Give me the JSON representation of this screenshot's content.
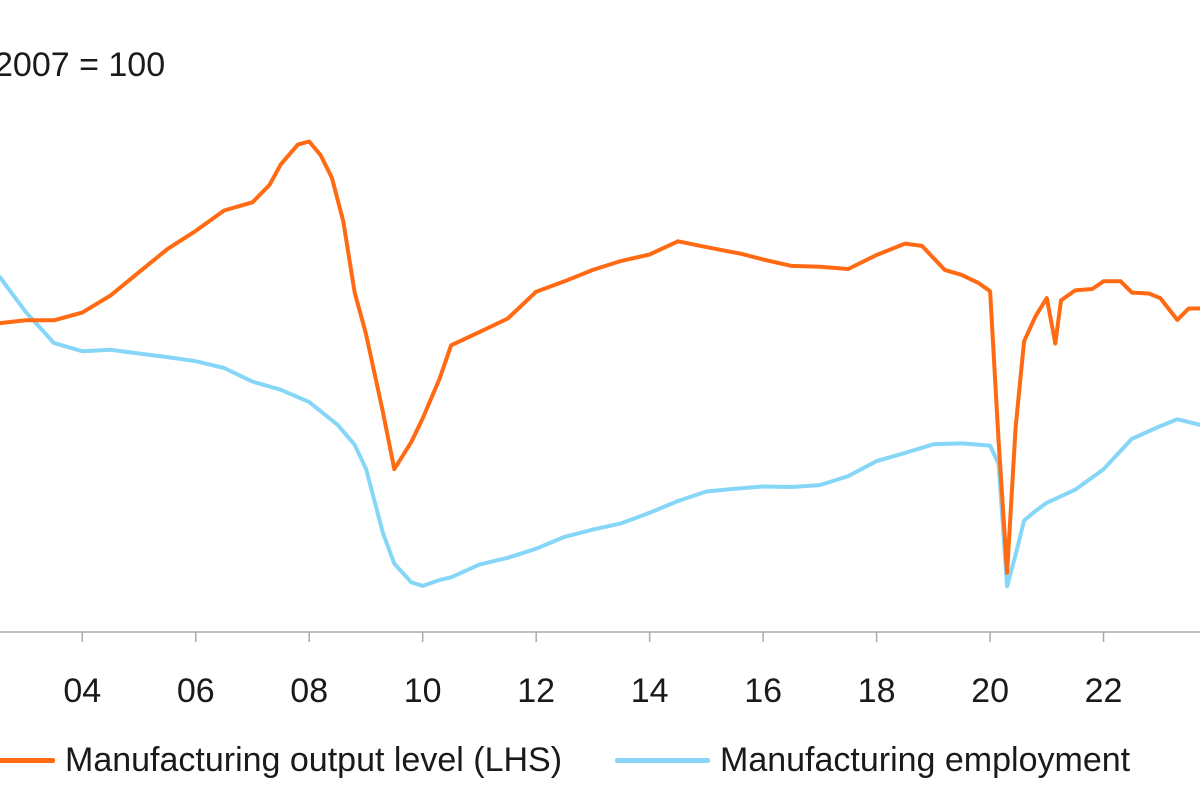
{
  "chart_data": {
    "type": "line",
    "unit_label": "2007 = 100",
    "x_tick_labels": [
      "04",
      "06",
      "08",
      "10",
      "12",
      "14",
      "16",
      "18",
      "20",
      "22"
    ],
    "x_ticks": [
      2004,
      2006,
      2008,
      2010,
      2012,
      2014,
      2016,
      2018,
      2020,
      2022
    ],
    "xlim": [
      2002.55,
      2023.7
    ],
    "y_scale": "relative (values read off a 0-100 vertical scale; the y-axis tick labels are cropped out of the image)",
    "ylim": [
      0,
      100
    ],
    "grid": false,
    "legend_position": "bottom",
    "series": [
      {
        "name": "Manufacturing output level (LHS)",
        "color": "#ff6a13",
        "x": [
          2002.55,
          2003.0,
          2003.5,
          2004.0,
          2004.5,
          2005.0,
          2005.5,
          2006.0,
          2006.5,
          2007.0,
          2007.3,
          2007.5,
          2007.8,
          2008.0,
          2008.2,
          2008.4,
          2008.6,
          2008.8,
          2009.0,
          2009.3,
          2009.5,
          2009.8,
          2010.0,
          2010.3,
          2010.5,
          2011.0,
          2011.5,
          2012.0,
          2012.5,
          2013.0,
          2013.5,
          2014.0,
          2014.5,
          2014.9,
          2015.3,
          2015.6,
          2016.0,
          2016.5,
          2017.0,
          2017.5,
          2018.0,
          2018.5,
          2018.8,
          2019.2,
          2019.5,
          2019.8,
          2020.0,
          2020.15,
          2020.3,
          2020.45,
          2020.6,
          2020.8,
          2021.0,
          2021.15,
          2021.25,
          2021.5,
          2021.8,
          2022.0,
          2022.3,
          2022.5,
          2022.8,
          2023.0,
          2023.3,
          2023.5,
          2023.7
        ],
        "values": [
          61.0,
          61.6,
          61.6,
          63.3,
          67.1,
          72.2,
          77.3,
          81.3,
          85.8,
          87.6,
          91.4,
          96.0,
          100.3,
          101.0,
          98.0,
          93.0,
          83.4,
          67.8,
          58.6,
          41.3,
          28.8,
          34.8,
          40.0,
          48.8,
          56.1,
          59.0,
          62.0,
          67.9,
          70.2,
          72.7,
          74.7,
          76.1,
          79.0,
          78.0,
          77.0,
          76.3,
          75.0,
          73.6,
          73.4,
          72.9,
          76.0,
          78.5,
          78.0,
          72.7,
          71.6,
          69.8,
          68.0,
          35.0,
          6.0,
          38.0,
          57.0,
          62.5,
          66.5,
          56.5,
          66.0,
          68.2,
          68.5,
          70.2,
          70.2,
          67.7,
          67.5,
          66.5,
          61.7,
          64.2,
          64.2
        ]
      },
      {
        "name": "Manufacturing employment",
        "color": "#86d6f7",
        "x": [
          2002.55,
          2003.0,
          2003.5,
          2004.0,
          2004.5,
          2005.0,
          2005.5,
          2006.0,
          2006.5,
          2007.0,
          2007.5,
          2008.0,
          2008.5,
          2008.8,
          2009.0,
          2009.3,
          2009.5,
          2009.8,
          2010.0,
          2010.3,
          2010.5,
          2011.0,
          2011.5,
          2012.0,
          2012.5,
          2013.0,
          2013.5,
          2014.0,
          2014.5,
          2015.0,
          2015.5,
          2016.0,
          2016.5,
          2017.0,
          2017.5,
          2018.0,
          2018.5,
          2019.0,
          2019.5,
          2020.0,
          2020.15,
          2020.3,
          2020.45,
          2020.6,
          2020.8,
          2021.0,
          2021.5,
          2022.0,
          2022.5,
          2023.0,
          2023.3,
          2023.7
        ],
        "values": [
          71.1,
          63.5,
          56.6,
          54.8,
          55.1,
          54.3,
          53.5,
          52.6,
          51.1,
          48.1,
          46.3,
          43.6,
          38.6,
          34.2,
          28.9,
          14.7,
          8.0,
          3.9,
          3.1,
          4.4,
          5.0,
          7.8,
          9.3,
          11.3,
          13.9,
          15.5,
          16.9,
          19.2,
          21.8,
          23.9,
          24.5,
          25.0,
          24.9,
          25.3,
          27.3,
          30.6,
          32.4,
          34.3,
          34.5,
          34.0,
          30.0,
          3.0,
          10.0,
          17.5,
          19.6,
          21.4,
          24.3,
          28.8,
          35.5,
          38.3,
          39.8,
          38.6
        ]
      }
    ]
  }
}
